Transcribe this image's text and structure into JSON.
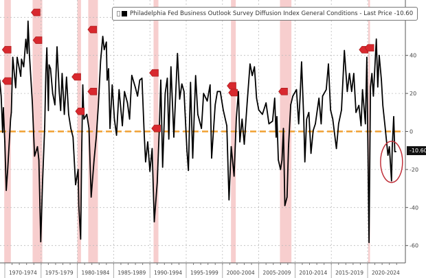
{
  "chart_data": {
    "type": "line",
    "title": "",
    "legend": {
      "label": "Philadelphia Fed Business Outlook Survey Diffusion Index General Conditions - Last Price -10.60",
      "placement": "top"
    },
    "last_price_label": "-10.60",
    "xlabel": "",
    "ylabel": "",
    "ylim": [
      -70,
      70
    ],
    "xlim": [
      1969.9,
      2024.6
    ],
    "y_ticks": [
      60,
      40,
      20,
      0,
      -20,
      -40,
      -60
    ],
    "y_axis_side": "right",
    "x_tick_labels": [
      "1970-1974",
      "1975-1979",
      "1980-1984",
      "1985-1989",
      "1990-1994",
      "1995-1999",
      "2000-2004",
      "2005-2009",
      "2010-2014",
      "2015-2019",
      "2020-2024"
    ],
    "grid": true,
    "reference_line": {
      "value": 0,
      "color": "#f0a030",
      "style": "dashed"
    },
    "line_color": "#000000",
    "recession_color": "#f6c5c5",
    "recessions": [
      [
        1969.92,
        1970.83
      ],
      [
        1973.83,
        1975.17
      ],
      [
        1980.0,
        1980.5
      ],
      [
        1981.5,
        1982.83
      ],
      [
        1990.5,
        1991.17
      ],
      [
        2001.17,
        2001.83
      ],
      [
        2007.92,
        2009.5
      ],
      [
        2020.08,
        2020.33
      ]
    ],
    "highlight_circle": {
      "x": 2023.3,
      "y": -16,
      "color": "#c0303a"
    },
    "event_markers": [
      [
        1970.3,
        43
      ],
      [
        1970.3,
        26.5
      ],
      [
        1974.3,
        62.6
      ],
      [
        1974.55,
        48
      ],
      [
        1979.9,
        28.7
      ],
      [
        1980.4,
        10.6
      ],
      [
        1982.1,
        53.6
      ],
      [
        1982.1,
        21
      ],
      [
        1990.6,
        30.8
      ],
      [
        1990.9,
        1.6
      ],
      [
        2001.3,
        24
      ],
      [
        2001.5,
        20.4
      ],
      [
        2008.4,
        21
      ],
      [
        2019.5,
        43
      ],
      [
        2020.3,
        44
      ]
    ],
    "marker_color": "#d8282e",
    "series": [
      {
        "x": [
          1969.0,
          1969.3,
          1969.5,
          1969.7,
          1969.8,
          1970.0,
          1970.2,
          1970.4,
          1970.8,
          1970.9,
          1971.1,
          1971.5,
          1971.7,
          1972.2,
          1972.3,
          1972.6,
          1972.9,
          1973.1,
          1973.2,
          1973.4,
          1973.8,
          1974.1,
          1974.5,
          1974.7,
          1974.95,
          1975.2,
          1975.5,
          1975.65,
          1975.8,
          1976.0,
          1976.1,
          1976.3,
          1976.6,
          1976.9,
          1977.2,
          1977.5,
          1977.7,
          1977.9,
          1978.2,
          1978.5,
          1978.8,
          1979.1,
          1979.4,
          1979.75,
          1980.1,
          1980.2,
          1980.45,
          1980.6,
          1980.75,
          1980.9,
          1981.3,
          1981.6,
          1981.9,
          1982.3,
          1982.6,
          1982.9,
          1983.2,
          1983.5,
          1983.7,
          1984.0,
          1984.1,
          1984.3,
          1984.5,
          1984.8,
          1985.1,
          1985.4,
          1985.75,
          1986.2,
          1986.5,
          1986.9,
          1987.2,
          1987.5,
          1988.0,
          1988.3,
          1988.6,
          1988.9,
          1989.2,
          1989.4,
          1989.7,
          1990.0,
          1990.3,
          1990.6,
          1991.0,
          1991.3,
          1991.5,
          1991.75,
          1992.1,
          1992.4,
          1992.6,
          1992.9,
          1993.3,
          1993.8,
          1994.1,
          1994.4,
          1994.7,
          1995.1,
          1995.3,
          1995.6,
          1995.9,
          1996.3,
          1996.6,
          1997.1,
          1997.4,
          1997.9,
          1998.3,
          1998.5,
          1999.0,
          1999.3,
          1999.7,
          2000.1,
          2000.6,
          2000.9,
          2001.2,
          2001.6,
          2001.9,
          2002.2,
          2002.4,
          2002.7,
          2003.0,
          2003.4,
          2003.8,
          2004.1,
          2004.4,
          2004.7,
          2005.0,
          2005.5,
          2006.0,
          2006.4,
          2006.9,
          2007.2,
          2007.4,
          2007.5,
          2007.7,
          2008.0,
          2008.2,
          2008.4,
          2008.6,
          2008.9,
          2009.1,
          2009.4,
          2009.7,
          2010.2,
          2010.5,
          2010.7,
          2010.9,
          2011.2,
          2011.35,
          2011.6,
          2011.9,
          2012.2,
          2012.5,
          2012.8,
          2013.3,
          2013.6,
          2013.8,
          2014.3,
          2014.6,
          2014.9,
          2015.2,
          2015.7,
          2016.0,
          2016.4,
          2016.8,
          2017.2,
          2017.5,
          2017.8,
          2018.1,
          2018.4,
          2018.8,
          2019.1,
          2019.3,
          2019.7,
          2019.9,
          2020.2,
          2020.4,
          2020.6,
          2020.8,
          2021.2,
          2021.4,
          2021.6,
          2021.9,
          2022.1,
          2022.4,
          2022.8,
          2023.0,
          2023.3,
          2023.4,
          2023.6,
          2023.75,
          2023.9
        ],
        "y": [
          20,
          27,
          18.6,
          -0.5,
          12.5,
          -5.5,
          -31,
          -20,
          6.5,
          10,
          39,
          23,
          39,
          29,
          38,
          34,
          48.5,
          41,
          58,
          40,
          15,
          -13,
          -8,
          -15,
          -58,
          -27,
          3,
          30.5,
          44,
          11,
          35,
          33,
          20,
          14,
          44.5,
          21,
          11,
          30.5,
          9,
          28.6,
          9,
          1.6,
          -3,
          -28,
          -20,
          -39,
          -56.6,
          -10,
          24.5,
          6.5,
          9,
          1.6,
          -34.5,
          -15,
          -3,
          14,
          37,
          50,
          43,
          47,
          27,
          33,
          1.6,
          24.5,
          6.5,
          -2,
          22,
          3,
          21,
          15,
          6.5,
          29.5,
          23,
          18.6,
          27,
          28,
          -0.7,
          -16,
          -5.5,
          -21,
          -9,
          -47.5,
          -27,
          1.6,
          27,
          -18.8,
          20,
          28,
          -4,
          34,
          -3,
          41,
          17,
          25,
          21,
          -10,
          -20.5,
          25.8,
          -14,
          29.4,
          9,
          1.6,
          20,
          16,
          24.5,
          -14,
          14,
          21,
          21,
          11.3,
          3,
          -36,
          -8,
          -23.5,
          6.5,
          21,
          -5.5,
          6.5,
          -6.7,
          15,
          35.5,
          29.4,
          34,
          17.5,
          11.3,
          9,
          15,
          4,
          5.4,
          17.5,
          -3,
          7.8,
          -15,
          -20,
          -15,
          1.6,
          -39,
          -34.5,
          -8,
          14,
          18.6,
          22,
          4,
          18.6,
          36.6,
          6.5,
          -16,
          6.5,
          10,
          -11.5,
          0.5,
          4,
          17.5,
          4,
          18.6,
          22,
          35.5,
          11.3,
          6.5,
          -9,
          4,
          11.3,
          42.6,
          21,
          30.5,
          21,
          30.5,
          10,
          13.7,
          3,
          22,
          4,
          39,
          -58.4,
          23.4,
          30.5,
          18.6,
          48.6,
          23.4,
          40,
          27,
          13.7,
          3,
          -12.5,
          -8,
          -26,
          -8,
          7.8,
          -10.6,
          -10.6
        ]
      }
    ]
  }
}
